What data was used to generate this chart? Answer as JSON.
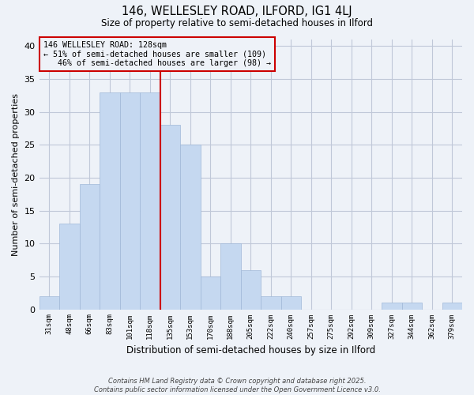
{
  "title1": "146, WELLESLEY ROAD, ILFORD, IG1 4LJ",
  "title2": "Size of property relative to semi-detached houses in Ilford",
  "xlabel": "Distribution of semi-detached houses by size in Ilford",
  "ylabel": "Number of semi-detached properties",
  "categories": [
    "31sqm",
    "48sqm",
    "66sqm",
    "83sqm",
    "101sqm",
    "118sqm",
    "135sqm",
    "153sqm",
    "170sqm",
    "188sqm",
    "205sqm",
    "222sqm",
    "240sqm",
    "257sqm",
    "275sqm",
    "292sqm",
    "309sqm",
    "327sqm",
    "344sqm",
    "362sqm",
    "379sqm"
  ],
  "values": [
    2,
    13,
    19,
    33,
    33,
    33,
    28,
    25,
    5,
    10,
    6,
    2,
    2,
    0,
    0,
    0,
    0,
    1,
    1,
    0,
    1
  ],
  "bar_color": "#c5d8f0",
  "bar_edge_color": "#a0b8d8",
  "grid_color": "#c0c8d8",
  "background_color": "#eef2f8",
  "property_bin_index": 6,
  "red_line_color": "#cc0000",
  "annotation_box_color": "#cc0000",
  "annotation_line1": "146 WELLESLEY ROAD: 128sqm",
  "annotation_line2": "← 51% of semi-detached houses are smaller (109)",
  "annotation_line3": "   46% of semi-detached houses are larger (98) →",
  "footer_line1": "Contains HM Land Registry data © Crown copyright and database right 2025.",
  "footer_line2": "Contains public sector information licensed under the Open Government Licence v3.0.",
  "ylim": [
    0,
    41
  ],
  "yticks": [
    0,
    5,
    10,
    15,
    20,
    25,
    30,
    35,
    40
  ]
}
